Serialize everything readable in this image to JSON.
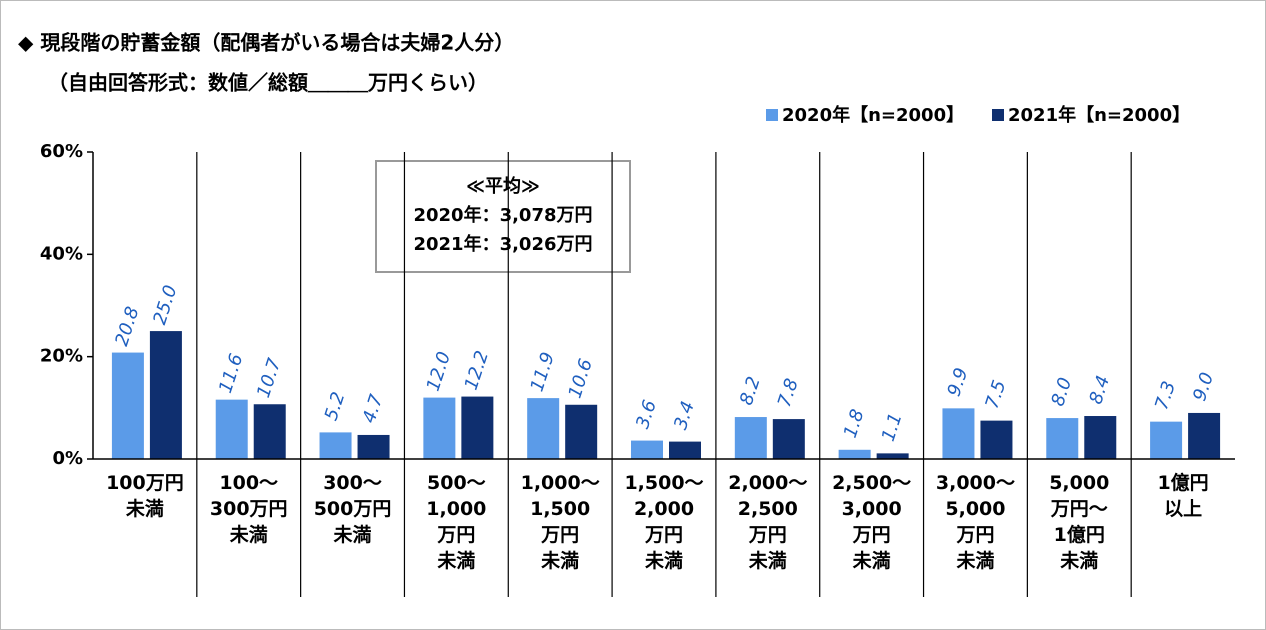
{
  "chart_data": {
    "type": "bar",
    "title": "◆ 現段階の貯蓄金額（配偶者がいる場合は夫婦2人分）",
    "subtitle": "（自由回答形式：数値／総額＿＿＿万円くらい）",
    "annotation": [
      "≪平均≫",
      "2020年：3,078万円",
      "2021年：3,026万円"
    ],
    "categories": [
      "100万円\n未満",
      "100～\n300万円\n未満",
      "300～\n500万円\n未満",
      "500～\n1,000\n万円\n未満",
      "1,000～\n1,500\n万円\n未満",
      "1,500～\n2,000\n万円\n未満",
      "2,000～\n2,500\n万円\n未満",
      "2,500～\n3,000\n万円\n未満",
      "3,000～\n5,000\n万円\n未満",
      "5,000\n万円～\n1億円\n未満",
      "1億円\n以上"
    ],
    "series": [
      {
        "name": "2020年【n=2000】",
        "color": "#5b9be8",
        "values": [
          20.8,
          11.6,
          5.2,
          12.0,
          11.9,
          3.6,
          8.2,
          1.8,
          9.9,
          8.0,
          7.3
        ],
        "value_labels": [
          "20.8",
          "11.6",
          "5.2",
          "12.0",
          "11.9",
          "3.6",
          "8.2",
          "1.8",
          "9.9",
          "8.0",
          "7.3"
        ]
      },
      {
        "name": "2021年【n=2000】",
        "color": "#0f2f6f",
        "values": [
          25.0,
          10.7,
          4.7,
          12.2,
          10.6,
          3.4,
          7.8,
          1.1,
          7.5,
          8.4,
          9.0
        ],
        "value_labels": [
          "25.0",
          "10.7",
          "4.7",
          "12.2",
          "10.6",
          "3.4",
          "7.8",
          "1.1",
          "7.5",
          "8.4",
          "9.0"
        ]
      }
    ],
    "ylim": [
      0,
      60
    ],
    "yticks": [
      {
        "value": 0,
        "label": "0%"
      },
      {
        "value": 20,
        "label": "20%"
      },
      {
        "value": 40,
        "label": "40%"
      },
      {
        "value": 60,
        "label": "60%"
      }
    ],
    "legend": "top-right"
  }
}
